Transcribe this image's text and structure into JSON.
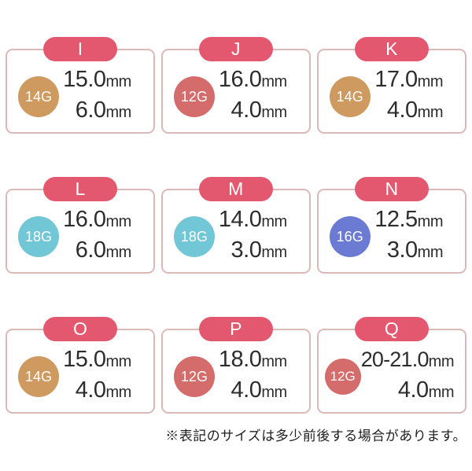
{
  "colors": {
    "pill": "#e4586f",
    "card_border": "#dcb9b9",
    "text": "#2d2d2d"
  },
  "gauge_colors": {
    "14G": "#cf9a60",
    "12G": "#d46c6c",
    "18G": "#72c7d6",
    "16G": "#6b7ad2"
  },
  "unit_label": "mm",
  "cards": [
    {
      "label": "I",
      "gauge": "14G",
      "size_top": "15.0",
      "size_bottom": "6.0",
      "wide": false
    },
    {
      "label": "J",
      "gauge": "12G",
      "size_top": "16.0",
      "size_bottom": "4.0",
      "wide": false
    },
    {
      "label": "K",
      "gauge": "14G",
      "size_top": "17.0",
      "size_bottom": "4.0",
      "wide": false
    },
    {
      "label": "L",
      "gauge": "18G",
      "size_top": "16.0",
      "size_bottom": "6.0",
      "wide": false
    },
    {
      "label": "M",
      "gauge": "18G",
      "size_top": "14.0",
      "size_bottom": "3.0",
      "wide": false
    },
    {
      "label": "N",
      "gauge": "16G",
      "size_top": "12.5",
      "size_bottom": "3.0",
      "wide": false
    },
    {
      "label": "O",
      "gauge": "14G",
      "size_top": "15.0",
      "size_bottom": "4.0",
      "wide": false
    },
    {
      "label": "P",
      "gauge": "12G",
      "size_top": "18.0",
      "size_bottom": "4.0",
      "wide": false
    },
    {
      "label": "Q",
      "gauge": "12G",
      "size_top": "20-21.0",
      "size_bottom": "4.0",
      "wide": true
    }
  ],
  "footnote": "※表記のサイズは多少前後する場合があります。",
  "chart_data": {
    "type": "table",
    "columns": [
      "size_label",
      "gauge",
      "dimension_1_mm",
      "dimension_2_mm"
    ],
    "rows": [
      [
        "I",
        "14G",
        "15.0",
        "6.0"
      ],
      [
        "J",
        "12G",
        "16.0",
        "4.0"
      ],
      [
        "K",
        "14G",
        "17.0",
        "4.0"
      ],
      [
        "L",
        "18G",
        "16.0",
        "6.0"
      ],
      [
        "M",
        "18G",
        "14.0",
        "3.0"
      ],
      [
        "N",
        "16G",
        "12.5",
        "3.0"
      ],
      [
        "O",
        "14G",
        "15.0",
        "4.0"
      ],
      [
        "P",
        "12G",
        "18.0",
        "4.0"
      ],
      [
        "Q",
        "12G",
        "20-21.0",
        "4.0"
      ]
    ],
    "note": "※表記のサイズは多少前後する場合があります。"
  }
}
